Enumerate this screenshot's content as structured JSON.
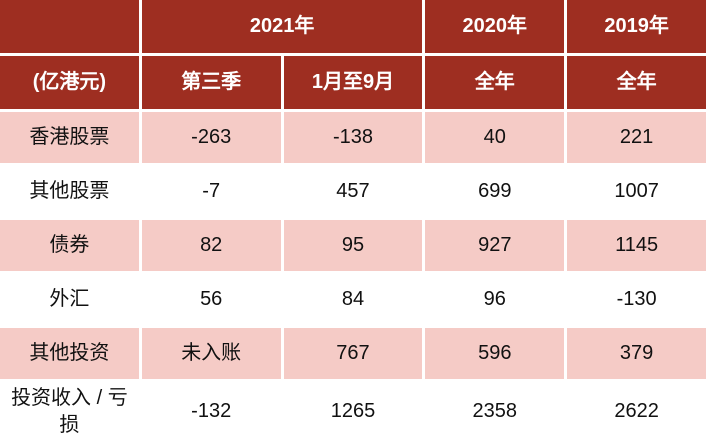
{
  "chart_data": {
    "type": "table",
    "unit_label": "(亿港元)",
    "column_groups": [
      {
        "label": "2021年",
        "span": 2
      },
      {
        "label": "2020年",
        "span": 1
      },
      {
        "label": "2019年",
        "span": 1
      }
    ],
    "columns": [
      "第三季",
      "1月至9月",
      "全年",
      "全年"
    ],
    "rows": [
      {
        "label": "香港股票",
        "values": [
          -263,
          -138,
          40,
          221
        ]
      },
      {
        "label": "其他股票",
        "values": [
          -7,
          457,
          699,
          1007
        ]
      },
      {
        "label": "债券",
        "values": [
          82,
          95,
          927,
          1145
        ]
      },
      {
        "label": "外汇",
        "values": [
          56,
          84,
          96,
          -130
        ]
      },
      {
        "label": "其他投资",
        "values": [
          "未入账",
          767,
          596,
          379
        ]
      },
      {
        "label": "投资收入 / 亏损",
        "values": [
          -132,
          1265,
          2358,
          2622
        ]
      }
    ]
  },
  "colors": {
    "header_bg": "#9E2E21",
    "header_text": "#FFFFFF",
    "row_pink_bg": "#F5CBC6",
    "row_white_bg": "#FFFFFF",
    "body_text": "#111111",
    "grid_gap": "#FFFFFF"
  }
}
